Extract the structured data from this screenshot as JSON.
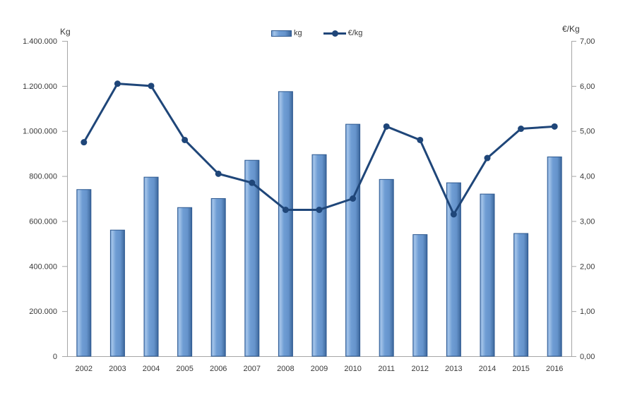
{
  "chart_data": {
    "type": "combo-bar-line",
    "categories": [
      "2002",
      "2003",
      "2004",
      "2005",
      "2006",
      "2007",
      "2008",
      "2009",
      "2010",
      "2011",
      "2012",
      "2013",
      "2014",
      "2015",
      "2016"
    ],
    "series": [
      {
        "name": "kg",
        "type": "bar",
        "axis": "left",
        "values": [
          740000,
          560000,
          795000,
          660000,
          700000,
          870000,
          1175000,
          895000,
          1030000,
          785000,
          540000,
          770000,
          720000,
          545000,
          885000
        ]
      },
      {
        "name": "€/kg",
        "type": "line",
        "axis": "right",
        "values": [
          4.75,
          6.05,
          6.0,
          4.8,
          4.05,
          3.85,
          3.25,
          3.25,
          3.5,
          5.1,
          4.8,
          3.15,
          4.4,
          5.05,
          5.1
        ]
      }
    ],
    "left_axis": {
      "title": "Kg",
      "min": 0,
      "max": 1400000,
      "tick_step": 200000,
      "tick_labels": [
        "0",
        "200.000",
        "400.000",
        "600.000",
        "800.000",
        "1.000.000",
        "1.200.000",
        "1.400.000"
      ]
    },
    "right_axis": {
      "title": "€/Kg",
      "min": 0,
      "max": 7,
      "tick_step": 1,
      "tick_labels": [
        "0,00",
        "1,00",
        "2,00",
        "3,00",
        "4,00",
        "5,00",
        "6,00",
        "7,00"
      ]
    },
    "legend": {
      "position": "top-center",
      "entries": [
        "kg",
        "€/kg"
      ]
    },
    "grid": false,
    "colors": {
      "bar_main": "#6593cb",
      "bar_highlight": "#a4c4e9",
      "bar_shadow": "#38639c",
      "bar_border": "#2f5a91",
      "line": "#1f4679",
      "axis": "#a6a6a6",
      "text": "#3a3a3a",
      "background": "#ffffff"
    }
  }
}
